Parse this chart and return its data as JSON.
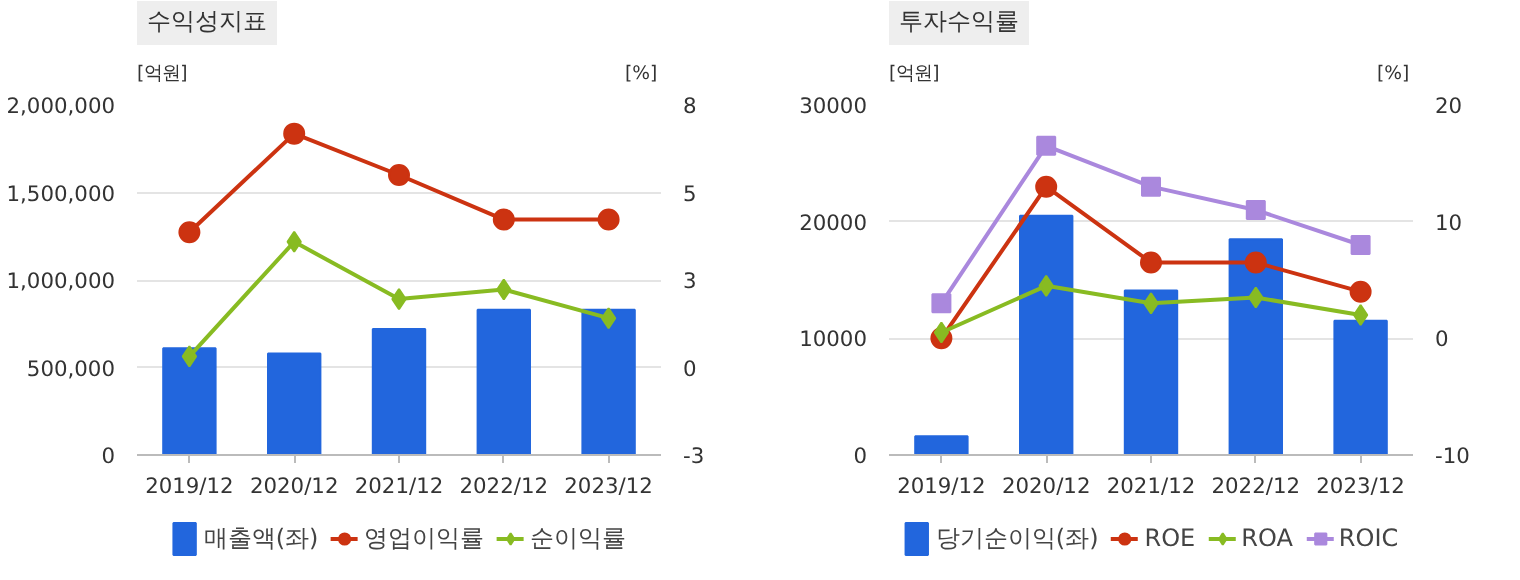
{
  "chart_data": [
    {
      "type": "bar",
      "title": "수익성지표",
      "ylabel": "[억원]",
      "y2label": "[%]",
      "categories": [
        "2019/12",
        "2020/12",
        "2021/12",
        "2022/12",
        "2023/12"
      ],
      "series": [
        {
          "name": "매출액(좌)",
          "color": "#2266dd",
          "values": [
            610000,
            580000,
            720000,
            830000,
            830000
          ]
        },
        {
          "name": "영업이익률",
          "type": "line",
          "axis": "y2",
          "marker": "circle",
          "color": "#cc3311",
          "values": [
            4.0,
            7.1,
            5.8,
            4.4,
            4.4
          ]
        },
        {
          "name": "순이익률",
          "type": "line",
          "axis": "y2",
          "marker": "diamond",
          "color": "#88bb22",
          "values": [
            0.1,
            3.7,
            1.9,
            2.2,
            1.3
          ]
        }
      ],
      "ylim": [
        0,
        2000000
      ],
      "yticks": [
        {
          "value": 0,
          "label": "0"
        },
        {
          "value": 500000,
          "label": "500,000"
        },
        {
          "value": 1000000,
          "label": "1,000,000"
        },
        {
          "value": 1500000,
          "label": "1,500,000"
        },
        {
          "value": 2000000,
          "label": "2,000,000"
        }
      ],
      "y2lim": [
        -3,
        8
      ],
      "y2ticks": [
        -3,
        {
          "value": -0.25,
          "label": "0"
        },
        {
          "value": 2.5,
          "label": "3"
        },
        {
          "value": 5.25,
          "label": "5"
        },
        8
      ],
      "grid": "y",
      "legend": "bottom"
    },
    {
      "type": "bar",
      "title": "투자수익률",
      "ylabel": "[억원]",
      "y2label": "[%]",
      "categories": [
        "2019/12",
        "2020/12",
        "2021/12",
        "2022/12",
        "2023/12"
      ],
      "series": [
        {
          "name": "당기순이익(좌)",
          "color": "#2266dd",
          "values": [
            1600,
            20500,
            14100,
            18500,
            11500
          ]
        },
        {
          "name": "ROE",
          "type": "line",
          "axis": "y2",
          "marker": "circle",
          "color": "#cc3311",
          "values": [
            0,
            13,
            6.5,
            6.5,
            4
          ]
        },
        {
          "name": "ROA",
          "type": "line",
          "axis": "y2",
          "marker": "diamond",
          "color": "#88bb22",
          "values": [
            0.5,
            4.5,
            3,
            3.5,
            2
          ]
        },
        {
          "name": "ROIC",
          "type": "line",
          "axis": "y2",
          "marker": "square",
          "color": "#aa88dd",
          "values": [
            3,
            16.5,
            13,
            11,
            8
          ]
        }
      ],
      "ylim": [
        0,
        30000
      ],
      "yticks": [
        0,
        10000,
        20000,
        30000
      ],
      "y2lim": [
        -10,
        20
      ],
      "y2ticks": [
        -10,
        0,
        10,
        20
      ],
      "grid": "y",
      "legend": "bottom"
    }
  ]
}
